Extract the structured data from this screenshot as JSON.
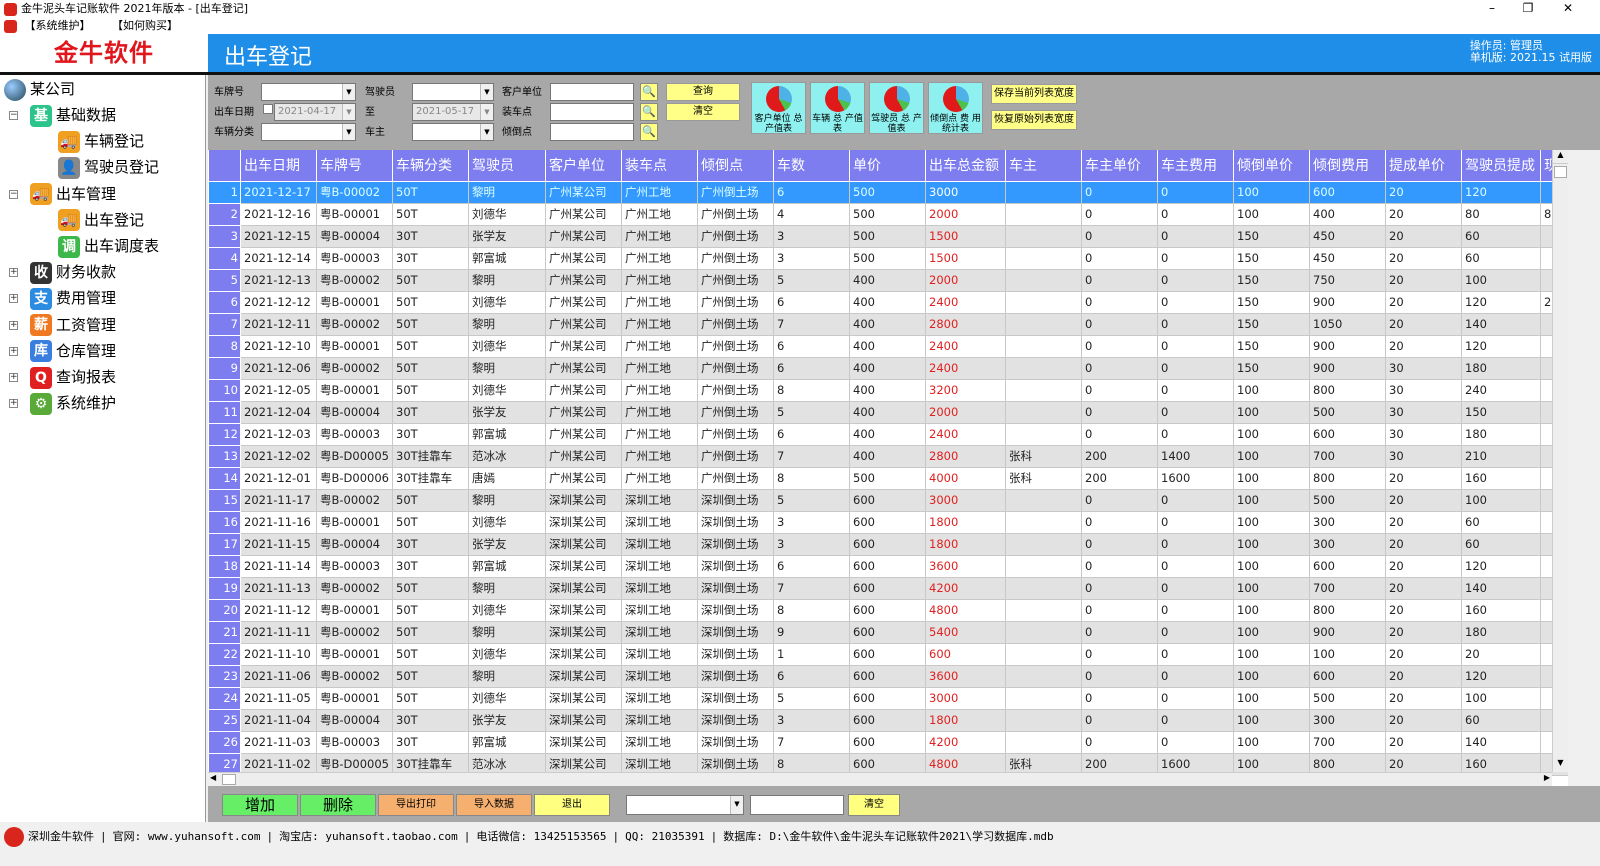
{
  "window": {
    "title": "金牛泥头车记账软件 2021年版本 - [出车登记]"
  },
  "menu": [
    "【系统维护】",
    "【如何购买】"
  ],
  "logo": "金牛软件",
  "header": {
    "title": "出车登记",
    "operator": "操作员: 管理员",
    "version": "单机版: 2021.15 试用版"
  },
  "sidebar": {
    "root": "某公司",
    "items": [
      {
        "label": "基础数据",
        "icon": "基",
        "color": "#2bc48a",
        "level": 1,
        "exp": "−"
      },
      {
        "label": "车辆登记",
        "icon": "truck-icon",
        "color": "#f0a020",
        "level": 2
      },
      {
        "label": "驾驶员登记",
        "icon": "driver-icon",
        "color": "#888888",
        "level": 2
      },
      {
        "label": "出车管理",
        "icon": "truck-icon",
        "color": "#f0a020",
        "level": 1,
        "exp": "−"
      },
      {
        "label": "出车登记",
        "icon": "truck-icon",
        "color": "#f0a020",
        "level": 2
      },
      {
        "label": "出车调度表",
        "icon": "调",
        "color": "#3cb84a",
        "level": 2
      },
      {
        "label": "财务收款",
        "icon": "收",
        "color": "#333333",
        "level": 1,
        "exp": "+"
      },
      {
        "label": "费用管理",
        "icon": "支",
        "color": "#2a8be0",
        "level": 1,
        "exp": "+"
      },
      {
        "label": "工资管理",
        "icon": "薪",
        "color": "#f07820",
        "level": 1,
        "exp": "+"
      },
      {
        "label": "仓库管理",
        "icon": "库",
        "color": "#3a7ee0",
        "level": 1,
        "exp": "+"
      },
      {
        "label": "查询报表",
        "icon": "Q",
        "color": "#e02020",
        "level": 1,
        "exp": "+"
      },
      {
        "label": "系统维护",
        "icon": "⚙",
        "color": "#5aaa3a",
        "level": 1,
        "exp": "+"
      }
    ]
  },
  "filter": {
    "plate_label": "车牌号",
    "date_label": "出车日期",
    "category_label": "车辆分类",
    "driver_label": "驾驶员",
    "to_label": "至",
    "owner_label": "车主",
    "customer_label": "客户单位",
    "load_label": "装车点",
    "dump_label": "倾倒点",
    "date_from": "2021-04-17",
    "date_to": "2021-05-17",
    "query": "查询",
    "clear": "清空",
    "charts": [
      "客户单位 总产值表",
      "车辆 总 产值表",
      "驾驶员 总 产值表",
      "倾倒点 费 用统计表"
    ],
    "save_width": "保存当前列表宽度",
    "restore_width": "恢复原始列表宽度"
  },
  "table": {
    "columns": [
      "出车日期",
      "车牌号",
      "车辆分类",
      "驾驶员",
      "客户单位",
      "装车点",
      "倾倒点",
      "车数",
      "单价",
      "出车总金额",
      "车主",
      "车主单价",
      "车主费用",
      "倾倒单价",
      "倾倒费用",
      "提成单价",
      "驾驶员提成",
      "现"
    ],
    "selected_row": 1,
    "rows": [
      [
        "2021-12-17",
        "粤B-00002",
        "50T",
        "黎明",
        "广州某公司",
        "广州工地",
        "广州倒土场",
        "6",
        "500",
        "3000",
        "",
        "0",
        "0",
        "100",
        "600",
        "20",
        "120",
        ""
      ],
      [
        "2021-12-16",
        "粤B-00001",
        "50T",
        "刘德华",
        "广州某公司",
        "广州工地",
        "广州倒土场",
        "4",
        "500",
        "2000",
        "",
        "0",
        "0",
        "100",
        "400",
        "20",
        "80",
        "8"
      ],
      [
        "2021-12-15",
        "粤B-00004",
        "30T",
        "张学友",
        "广州某公司",
        "广州工地",
        "广州倒土场",
        "3",
        "500",
        "1500",
        "",
        "0",
        "0",
        "150",
        "450",
        "20",
        "60",
        ""
      ],
      [
        "2021-12-14",
        "粤B-00003",
        "30T",
        "郭富城",
        "广州某公司",
        "广州工地",
        "广州倒土场",
        "3",
        "500",
        "1500",
        "",
        "0",
        "0",
        "150",
        "450",
        "20",
        "60",
        ""
      ],
      [
        "2021-12-13",
        "粤B-00002",
        "50T",
        "黎明",
        "广州某公司",
        "广州工地",
        "广州倒土场",
        "5",
        "400",
        "2000",
        "",
        "0",
        "0",
        "150",
        "750",
        "20",
        "100",
        ""
      ],
      [
        "2021-12-12",
        "粤B-00001",
        "50T",
        "刘德华",
        "广州某公司",
        "广州工地",
        "广州倒土场",
        "6",
        "400",
        "2400",
        "",
        "0",
        "0",
        "150",
        "900",
        "20",
        "120",
        "2"
      ],
      [
        "2021-12-11",
        "粤B-00002",
        "50T",
        "黎明",
        "广州某公司",
        "广州工地",
        "广州倒土场",
        "7",
        "400",
        "2800",
        "",
        "0",
        "0",
        "150",
        "1050",
        "20",
        "140",
        ""
      ],
      [
        "2021-12-10",
        "粤B-00001",
        "50T",
        "刘德华",
        "广州某公司",
        "广州工地",
        "广州倒土场",
        "6",
        "400",
        "2400",
        "",
        "0",
        "0",
        "150",
        "900",
        "20",
        "120",
        ""
      ],
      [
        "2021-12-06",
        "粤B-00002",
        "50T",
        "黎明",
        "广州某公司",
        "广州工地",
        "广州倒土场",
        "6",
        "400",
        "2400",
        "",
        "0",
        "0",
        "150",
        "900",
        "30",
        "180",
        ""
      ],
      [
        "2021-12-05",
        "粤B-00001",
        "50T",
        "刘德华",
        "广州某公司",
        "广州工地",
        "广州倒土场",
        "8",
        "400",
        "3200",
        "",
        "0",
        "0",
        "100",
        "800",
        "30",
        "240",
        ""
      ],
      [
        "2021-12-04",
        "粤B-00004",
        "30T",
        "张学友",
        "广州某公司",
        "广州工地",
        "广州倒土场",
        "5",
        "400",
        "2000",
        "",
        "0",
        "0",
        "100",
        "500",
        "30",
        "150",
        ""
      ],
      [
        "2021-12-03",
        "粤B-00003",
        "30T",
        "郭富城",
        "广州某公司",
        "广州工地",
        "广州倒土场",
        "6",
        "400",
        "2400",
        "",
        "0",
        "0",
        "100",
        "600",
        "30",
        "180",
        ""
      ],
      [
        "2021-12-02",
        "粤B-D00005",
        "30T挂靠车",
        "范冰冰",
        "广州某公司",
        "广州工地",
        "广州倒土场",
        "7",
        "400",
        "2800",
        "张科",
        "200",
        "1400",
        "100",
        "700",
        "30",
        "210",
        ""
      ],
      [
        "2021-12-01",
        "粤B-D00006",
        "30T挂靠车",
        "唐嫣",
        "广州某公司",
        "广州工地",
        "广州倒土场",
        "8",
        "500",
        "4000",
        "张科",
        "200",
        "1600",
        "100",
        "800",
        "20",
        "160",
        ""
      ],
      [
        "2021-11-17",
        "粤B-00002",
        "50T",
        "黎明",
        "深圳某公司",
        "深圳工地",
        "深圳倒土场",
        "5",
        "600",
        "3000",
        "",
        "0",
        "0",
        "100",
        "500",
        "20",
        "100",
        ""
      ],
      [
        "2021-11-16",
        "粤B-00001",
        "50T",
        "刘德华",
        "深圳某公司",
        "深圳工地",
        "深圳倒土场",
        "3",
        "600",
        "1800",
        "",
        "0",
        "0",
        "100",
        "300",
        "20",
        "60",
        ""
      ],
      [
        "2021-11-15",
        "粤B-00004",
        "30T",
        "张学友",
        "深圳某公司",
        "深圳工地",
        "深圳倒土场",
        "3",
        "600",
        "1800",
        "",
        "0",
        "0",
        "100",
        "300",
        "20",
        "60",
        ""
      ],
      [
        "2021-11-14",
        "粤B-00003",
        "30T",
        "郭富城",
        "深圳某公司",
        "深圳工地",
        "深圳倒土场",
        "6",
        "600",
        "3600",
        "",
        "0",
        "0",
        "100",
        "600",
        "20",
        "120",
        ""
      ],
      [
        "2021-11-13",
        "粤B-00002",
        "50T",
        "黎明",
        "深圳某公司",
        "深圳工地",
        "深圳倒土场",
        "7",
        "600",
        "4200",
        "",
        "0",
        "0",
        "100",
        "700",
        "20",
        "140",
        ""
      ],
      [
        "2021-11-12",
        "粤B-00001",
        "50T",
        "刘德华",
        "深圳某公司",
        "深圳工地",
        "深圳倒土场",
        "8",
        "600",
        "4800",
        "",
        "0",
        "0",
        "100",
        "800",
        "20",
        "160",
        ""
      ],
      [
        "2021-11-11",
        "粤B-00002",
        "50T",
        "黎明",
        "深圳某公司",
        "深圳工地",
        "深圳倒土场",
        "9",
        "600",
        "5400",
        "",
        "0",
        "0",
        "100",
        "900",
        "20",
        "180",
        ""
      ],
      [
        "2021-11-10",
        "粤B-00001",
        "50T",
        "刘德华",
        "深圳某公司",
        "深圳工地",
        "深圳倒土场",
        "1",
        "600",
        "600",
        "",
        "0",
        "0",
        "100",
        "100",
        "20",
        "20",
        ""
      ],
      [
        "2021-11-06",
        "粤B-00002",
        "50T",
        "黎明",
        "深圳某公司",
        "深圳工地",
        "深圳倒土场",
        "6",
        "600",
        "3600",
        "",
        "0",
        "0",
        "100",
        "600",
        "20",
        "120",
        ""
      ],
      [
        "2021-11-05",
        "粤B-00001",
        "50T",
        "刘德华",
        "深圳某公司",
        "深圳工地",
        "深圳倒土场",
        "5",
        "600",
        "3000",
        "",
        "0",
        "0",
        "100",
        "500",
        "20",
        "100",
        ""
      ],
      [
        "2021-11-04",
        "粤B-00004",
        "30T",
        "张学友",
        "深圳某公司",
        "深圳工地",
        "深圳倒土场",
        "3",
        "600",
        "1800",
        "",
        "0",
        "0",
        "100",
        "300",
        "20",
        "60",
        ""
      ],
      [
        "2021-11-03",
        "粤B-00003",
        "30T",
        "郭富城",
        "深圳某公司",
        "深圳工地",
        "深圳倒土场",
        "7",
        "600",
        "4200",
        "",
        "0",
        "0",
        "100",
        "700",
        "20",
        "140",
        ""
      ],
      [
        "2021-11-02",
        "粤B-D00005",
        "30T挂靠车",
        "范冰冰",
        "深圳某公司",
        "深圳工地",
        "深圳倒土场",
        "8",
        "600",
        "4800",
        "张科",
        "200",
        "1600",
        "100",
        "800",
        "20",
        "160",
        ""
      ]
    ]
  },
  "bottom": {
    "add": "增加",
    "delete": "删除",
    "export_print": "导出打印",
    "import": "导入数据",
    "exit": "退出",
    "clear": "清空"
  },
  "status": [
    "深圳金牛软件",
    "官网: www.yuhansoft.com",
    "淘宝店: yuhansoft.taobao.com",
    "电话微信: 13425153565",
    "QQ: 21035391",
    "数据库: D:\\金牛软件\\金牛泥头车记账软件2021\\学习数据库.mdb"
  ],
  "colors": {
    "header": "#1f8ee8",
    "grid_header": "#7d7df0",
    "selected": "#3399ff",
    "amount": "#e02020",
    "logo": "#e0161c"
  }
}
